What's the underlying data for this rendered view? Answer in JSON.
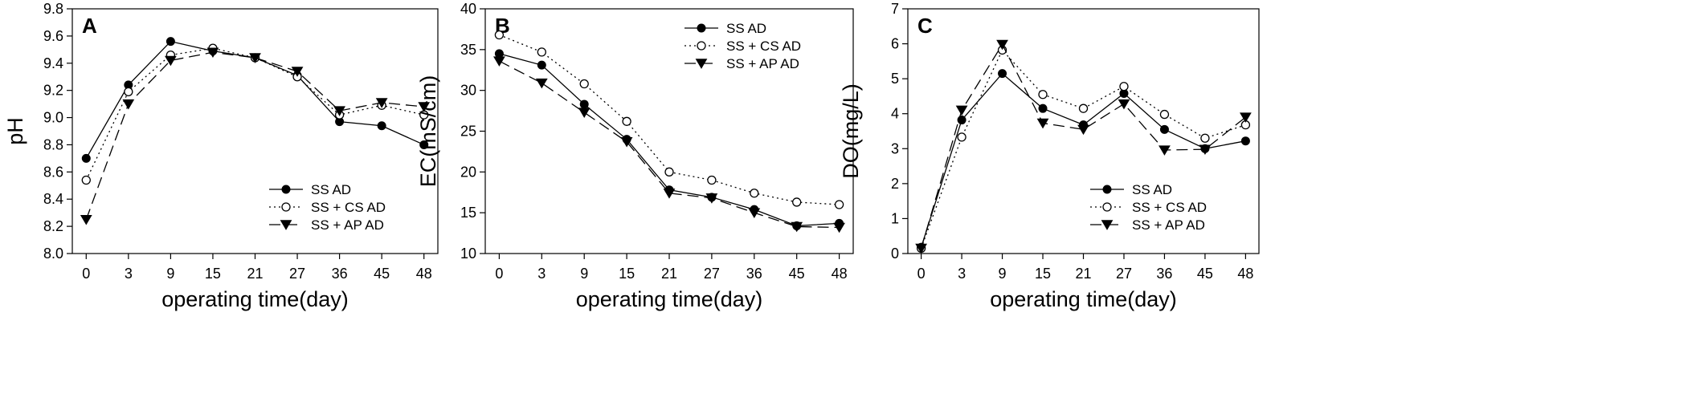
{
  "figure": {
    "xlabel": "operating time(day)",
    "categories": [
      "0",
      "3",
      "9",
      "15",
      "21",
      "27",
      "36",
      "45",
      "48"
    ],
    "legend": [
      "SS AD",
      "SS + CS AD",
      "SS + AP AD"
    ]
  },
  "chart_data": [
    {
      "type": "line",
      "label": "A",
      "xlabel": "operating time(day)",
      "ylabel": "pH",
      "ylim": [
        8.0,
        9.8
      ],
      "yticks": [
        8.0,
        8.2,
        8.4,
        8.6,
        8.8,
        9.0,
        9.2,
        9.4,
        9.6,
        9.8
      ],
      "ytick_labels": [
        "8.0",
        "8.2",
        "8.4",
        "8.6",
        "8.8",
        "9.0",
        "9.2",
        "9.4",
        "9.6",
        "9.8"
      ],
      "categories": [
        "0",
        "3",
        "9",
        "15",
        "21",
        "27",
        "36",
        "45",
        "48"
      ],
      "legend_position": "bottom-right",
      "series": [
        {
          "name": "SS AD",
          "values": [
            8.7,
            9.24,
            9.56,
            9.49,
            9.44,
            9.31,
            8.97,
            8.94,
            8.8
          ]
        },
        {
          "name": "SS + CS AD",
          "values": [
            8.54,
            9.19,
            9.46,
            9.51,
            9.44,
            9.3,
            9.02,
            9.09,
            9.02
          ]
        },
        {
          "name": "SS + AP AD",
          "values": [
            8.25,
            9.1,
            9.42,
            9.48,
            9.44,
            9.34,
            9.05,
            9.11,
            9.08
          ]
        }
      ]
    },
    {
      "type": "line",
      "label": "B",
      "xlabel": "operating time(day)",
      "ylabel": "EC(mS/cm)",
      "ylim": [
        10,
        40
      ],
      "yticks": [
        10,
        15,
        20,
        25,
        30,
        35,
        40
      ],
      "ytick_labels": [
        "10",
        "15",
        "20",
        "25",
        "30",
        "35",
        "40"
      ],
      "categories": [
        "0",
        "3",
        "9",
        "15",
        "21",
        "27",
        "36",
        "45",
        "48"
      ],
      "legend_position": "top-right",
      "series": [
        {
          "name": "SS AD",
          "values": [
            34.5,
            33.1,
            28.3,
            24.0,
            17.8,
            16.9,
            15.4,
            13.4,
            13.7
          ]
        },
        {
          "name": "SS + CS AD",
          "values": [
            36.8,
            34.7,
            30.8,
            26.2,
            20.0,
            19.0,
            17.4,
            16.3,
            16.0
          ]
        },
        {
          "name": "SS + AP AD",
          "values": [
            33.6,
            30.9,
            27.3,
            23.7,
            17.4,
            16.8,
            15.0,
            13.3,
            13.2
          ]
        }
      ]
    },
    {
      "type": "line",
      "label": "C",
      "xlabel": "operating time(day)",
      "ylabel": "DO(mg/L)",
      "ylim": [
        0,
        7
      ],
      "yticks": [
        0,
        1,
        2,
        3,
        4,
        5,
        6,
        7
      ],
      "ytick_labels": [
        "0",
        "1",
        "2",
        "3",
        "4",
        "5",
        "6",
        "7"
      ],
      "categories": [
        "0",
        "3",
        "9",
        "15",
        "21",
        "27",
        "36",
        "45",
        "48"
      ],
      "legend_position": "bottom-right",
      "series": [
        {
          "name": "SS AD",
          "values": [
            0.18,
            3.82,
            5.15,
            4.15,
            3.68,
            4.58,
            3.55,
            3.0,
            3.22
          ]
        },
        {
          "name": "SS + CS AD",
          "values": [
            0.15,
            3.33,
            5.82,
            4.55,
            4.15,
            4.78,
            3.98,
            3.3,
            3.68
          ]
        },
        {
          "name": "SS + AP AD",
          "values": [
            0.15,
            4.1,
            5.98,
            3.73,
            3.55,
            4.28,
            2.96,
            2.98,
            3.9
          ]
        }
      ]
    }
  ]
}
